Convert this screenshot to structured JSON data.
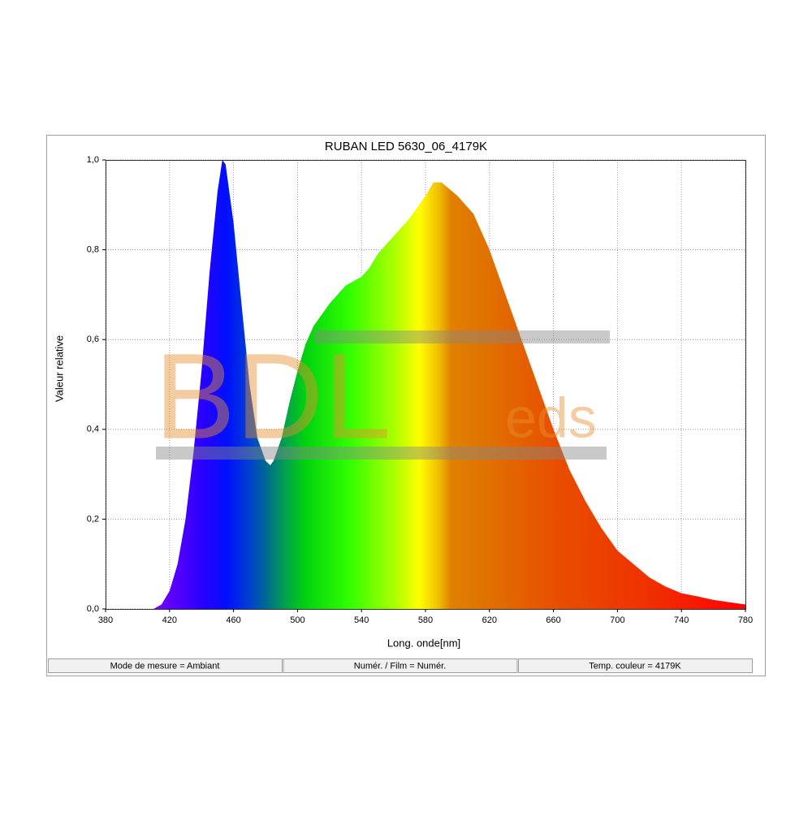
{
  "chart_data": {
    "type": "area",
    "title": "RUBAN LED 5630_06_4179K",
    "x_label": "Long. onde[nm]",
    "y_label": "Valeur relative",
    "watermark": [
      "BDL",
      "eds"
    ],
    "x": [
      380,
      400,
      410,
      415,
      420,
      425,
      430,
      435,
      440,
      445,
      450,
      453,
      455,
      460,
      465,
      470,
      475,
      480,
      483,
      485,
      490,
      495,
      500,
      505,
      510,
      520,
      530,
      540,
      545,
      550,
      560,
      570,
      580,
      585,
      590,
      600,
      610,
      620,
      630,
      640,
      650,
      660,
      670,
      680,
      690,
      700,
      710,
      720,
      730,
      740,
      750,
      760,
      770,
      780
    ],
    "values": [
      0,
      0,
      0,
      0.01,
      0.04,
      0.1,
      0.2,
      0.35,
      0.53,
      0.75,
      0.93,
      1.0,
      0.99,
      0.86,
      0.68,
      0.5,
      0.38,
      0.33,
      0.32,
      0.33,
      0.38,
      0.46,
      0.53,
      0.59,
      0.63,
      0.68,
      0.72,
      0.74,
      0.76,
      0.79,
      0.83,
      0.87,
      0.92,
      0.95,
      0.95,
      0.92,
      0.88,
      0.8,
      0.7,
      0.6,
      0.5,
      0.4,
      0.31,
      0.24,
      0.18,
      0.13,
      0.1,
      0.07,
      0.05,
      0.035,
      0.028,
      0.02,
      0.015,
      0.01
    ],
    "xlim": [
      380,
      780
    ],
    "ylim": [
      0,
      1
    ],
    "xticks": [
      380,
      420,
      460,
      500,
      540,
      580,
      620,
      660,
      700,
      740,
      780
    ],
    "yticks": [
      {
        "value": 0,
        "label": "0,0"
      },
      {
        "value": 0.2,
        "label": "0,2"
      },
      {
        "value": 0.4,
        "label": "0,4"
      },
      {
        "value": 0.6,
        "label": "0,6"
      },
      {
        "value": 0.8,
        "label": "0,8"
      },
      {
        "value": 1,
        "label": "1,0"
      }
    ],
    "grid": true,
    "status": [
      "Mode de mesure = Ambiant",
      "Numér. / Film = Numér.",
      "Temp. couleur = 4179K"
    ]
  }
}
